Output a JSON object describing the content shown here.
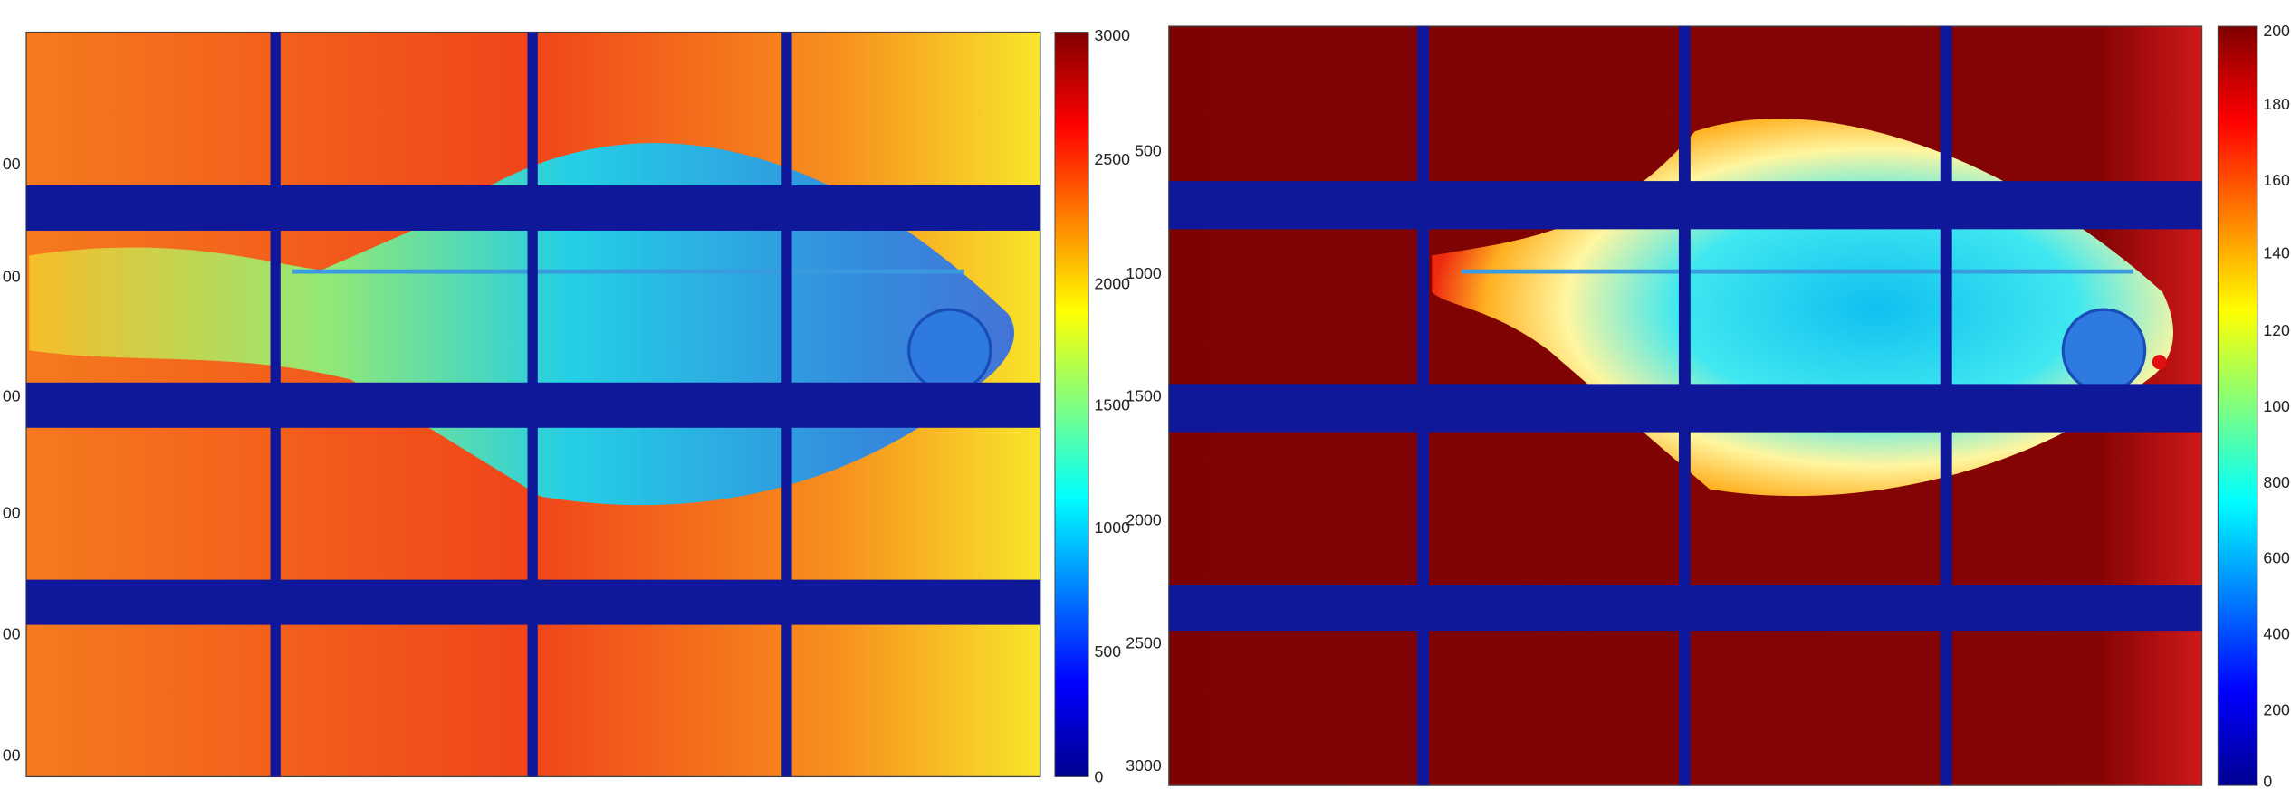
{
  "left_panel": {
    "y_labels": [
      "00",
      "00",
      "00",
      "00",
      "00",
      "00"
    ],
    "colorbar_labels": [
      "3000",
      "2500",
      "2000",
      "1500",
      "1000",
      "500",
      "0"
    ]
  },
  "right_panel": {
    "y_labels": [
      "500",
      "1000",
      "1500",
      "2000",
      "2500",
      "3000"
    ],
    "colorbar_labels": [
      "200",
      "180",
      "160",
      "140",
      "120",
      "100",
      "800",
      "600",
      "400",
      "200",
      "0"
    ]
  }
}
